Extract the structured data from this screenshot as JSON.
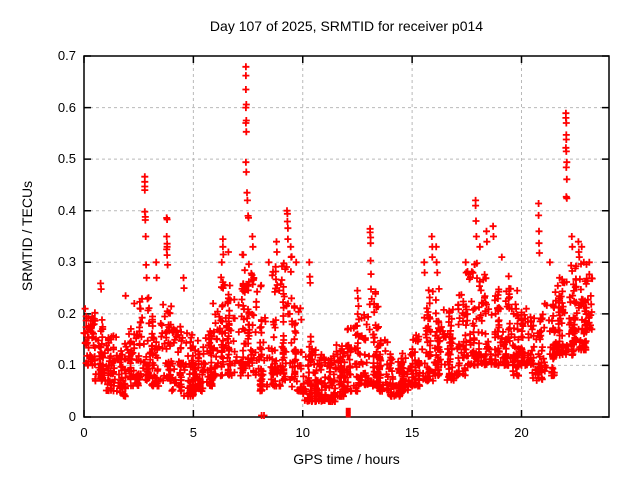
{
  "window": {
    "background": "#ffffff"
  },
  "colors": {
    "points": "#ff0000",
    "grid": "#b9b9b9",
    "axis": "#000000",
    "text": "#000000"
  },
  "chart_data": {
    "type": "scatter",
    "title": "Day 107 of 2025, SRMTID for receiver p014",
    "xlabel": "GPS time / hours",
    "ylabel": "SRMTID / TECUs",
    "xlim": [
      0,
      24
    ],
    "ylim": [
      0,
      0.7
    ],
    "xticks": {
      "values": [
        0,
        5,
        10,
        15,
        20
      ],
      "labels": [
        "0",
        "5",
        "10",
        "15",
        "20"
      ]
    },
    "yticks": {
      "values": [
        0,
        0.1,
        0.2,
        0.3,
        0.4,
        0.5,
        0.6,
        0.7
      ],
      "labels": [
        "0",
        "0.1",
        "0.2",
        "0.3",
        "0.4",
        "0.5",
        "0.6",
        "0.7"
      ]
    },
    "grid": true,
    "legend": null,
    "marker": {
      "shape": "plus",
      "color": "#ff0000",
      "size": 7
    },
    "series_name": "SRMTID",
    "seed": 107,
    "peak_points": [
      [
        0.05,
        0.21
      ],
      [
        0.1,
        0.195
      ],
      [
        0.76,
        0.259
      ],
      [
        0.78,
        0.248
      ],
      [
        1.9,
        0.235
      ],
      [
        2.3,
        0.22
      ],
      [
        2.78,
        0.466
      ],
      [
        2.78,
        0.456
      ],
      [
        2.78,
        0.447
      ],
      [
        2.78,
        0.44
      ],
      [
        2.78,
        0.398
      ],
      [
        2.8,
        0.388
      ],
      [
        2.8,
        0.382
      ],
      [
        2.82,
        0.35
      ],
      [
        2.84,
        0.295
      ],
      [
        2.86,
        0.27
      ],
      [
        3.3,
        0.3
      ],
      [
        3.32,
        0.27
      ],
      [
        3.78,
        0.386
      ],
      [
        3.8,
        0.383
      ],
      [
        3.78,
        0.35
      ],
      [
        3.8,
        0.336
      ],
      [
        3.8,
        0.33
      ],
      [
        3.78,
        0.325
      ],
      [
        3.8,
        0.314
      ],
      [
        3.82,
        0.295
      ],
      [
        4.55,
        0.27
      ],
      [
        4.57,
        0.25
      ],
      [
        5.9,
        0.22
      ],
      [
        6.35,
        0.345
      ],
      [
        6.35,
        0.33
      ],
      [
        6.37,
        0.315
      ],
      [
        6.3,
        0.3
      ],
      [
        6.6,
        0.32
      ],
      [
        7.4,
        0.679
      ],
      [
        7.4,
        0.662
      ],
      [
        7.4,
        0.635
      ],
      [
        7.42,
        0.606
      ],
      [
        7.4,
        0.6
      ],
      [
        7.42,
        0.575
      ],
      [
        7.4,
        0.57
      ],
      [
        7.42,
        0.553
      ],
      [
        7.4,
        0.494
      ],
      [
        7.42,
        0.475
      ],
      [
        7.45,
        0.435
      ],
      [
        7.47,
        0.42
      ],
      [
        7.5,
        0.39
      ],
      [
        7.52,
        0.386
      ],
      [
        7.7,
        0.35
      ],
      [
        7.72,
        0.33
      ],
      [
        8.12,
        0.003
      ],
      [
        8.23,
        0.003
      ],
      [
        8.45,
        0.3
      ],
      [
        8.8,
        0.34
      ],
      [
        8.82,
        0.32
      ],
      [
        9.28,
        0.4
      ],
      [
        9.3,
        0.394
      ],
      [
        9.3,
        0.379
      ],
      [
        9.32,
        0.366
      ],
      [
        9.32,
        0.345
      ],
      [
        9.45,
        0.33
      ],
      [
        9.47,
        0.31
      ],
      [
        9.7,
        0.3
      ],
      [
        10.3,
        0.3
      ],
      [
        10.32,
        0.272
      ],
      [
        10.34,
        0.26
      ],
      [
        12.5,
        0.245
      ],
      [
        12.52,
        0.23
      ],
      [
        12.55,
        0.215
      ],
      [
        13.08,
        0.365
      ],
      [
        13.08,
        0.358
      ],
      [
        13.1,
        0.348
      ],
      [
        13.1,
        0.337
      ],
      [
        13.1,
        0.303
      ],
      [
        13.12,
        0.277
      ],
      [
        13.12,
        0.248
      ],
      [
        13.15,
        0.229
      ],
      [
        15.55,
        0.3
      ],
      [
        15.57,
        0.28
      ],
      [
        15.9,
        0.35
      ],
      [
        15.92,
        0.33
      ],
      [
        15.92,
        0.31
      ],
      [
        16.1,
        0.33
      ],
      [
        16.12,
        0.3
      ],
      [
        16.15,
        0.28
      ],
      [
        17.45,
        0.3
      ],
      [
        17.47,
        0.28
      ],
      [
        17.9,
        0.42
      ],
      [
        17.9,
        0.41
      ],
      [
        17.92,
        0.38
      ],
      [
        17.94,
        0.35
      ],
      [
        18.1,
        0.33
      ],
      [
        18.4,
        0.36
      ],
      [
        18.42,
        0.34
      ],
      [
        18.7,
        0.37
      ],
      [
        18.72,
        0.35
      ],
      [
        19.1,
        0.31
      ],
      [
        20.78,
        0.414
      ],
      [
        20.78,
        0.391
      ],
      [
        20.8,
        0.36
      ],
      [
        20.8,
        0.337
      ],
      [
        20.82,
        0.318
      ],
      [
        21.3,
        0.3
      ],
      [
        22.03,
        0.589
      ],
      [
        22.03,
        0.58
      ],
      [
        22.05,
        0.57
      ],
      [
        22.05,
        0.547
      ],
      [
        22.05,
        0.538
      ],
      [
        22.03,
        0.522
      ],
      [
        22.05,
        0.515
      ],
      [
        22.07,
        0.494
      ],
      [
        22.05,
        0.484
      ],
      [
        22.07,
        0.461
      ],
      [
        22.05,
        0.427
      ],
      [
        22.07,
        0.424
      ],
      [
        22.3,
        0.35
      ],
      [
        22.32,
        0.33
      ],
      [
        22.6,
        0.34
      ],
      [
        22.62,
        0.32
      ],
      [
        22.64,
        0.31
      ],
      [
        22.75,
        0.33
      ],
      [
        22.85,
        0.3
      ],
      [
        23.1,
        0.3
      ]
    ],
    "square_points": [
      [
        12.08,
        0.004
      ],
      [
        12.08,
        0.013
      ]
    ],
    "density_bins": [
      [
        0.0,
        0.5,
        46,
        0.1,
        0.21
      ],
      [
        0.5,
        1.0,
        46,
        0.07,
        0.19
      ],
      [
        1.0,
        1.5,
        46,
        0.05,
        0.16
      ],
      [
        1.5,
        2.0,
        46,
        0.04,
        0.15
      ],
      [
        2.0,
        2.5,
        46,
        0.06,
        0.18
      ],
      [
        2.5,
        3.0,
        46,
        0.07,
        0.24
      ],
      [
        3.0,
        3.5,
        46,
        0.06,
        0.2
      ],
      [
        3.5,
        4.0,
        46,
        0.07,
        0.22
      ],
      [
        4.0,
        4.5,
        46,
        0.05,
        0.18
      ],
      [
        4.5,
        5.0,
        46,
        0.04,
        0.17
      ],
      [
        5.0,
        5.5,
        46,
        0.05,
        0.15
      ],
      [
        5.5,
        6.0,
        46,
        0.06,
        0.17
      ],
      [
        6.0,
        6.5,
        46,
        0.08,
        0.28
      ],
      [
        6.5,
        7.0,
        46,
        0.08,
        0.26
      ],
      [
        7.0,
        7.5,
        46,
        0.08,
        0.32
      ],
      [
        7.5,
        8.0,
        46,
        0.08,
        0.3
      ],
      [
        8.0,
        8.5,
        44,
        0.05,
        0.26
      ],
      [
        8.5,
        9.0,
        46,
        0.06,
        0.3
      ],
      [
        9.0,
        9.5,
        46,
        0.07,
        0.32
      ],
      [
        9.5,
        10.0,
        46,
        0.05,
        0.22
      ],
      [
        10.0,
        10.5,
        46,
        0.03,
        0.16
      ],
      [
        10.5,
        11.0,
        46,
        0.03,
        0.13
      ],
      [
        11.0,
        11.5,
        46,
        0.03,
        0.12
      ],
      [
        11.5,
        12.0,
        46,
        0.04,
        0.14
      ],
      [
        12.0,
        12.5,
        45,
        0.05,
        0.18
      ],
      [
        12.5,
        13.0,
        46,
        0.06,
        0.2
      ],
      [
        13.0,
        13.5,
        46,
        0.06,
        0.25
      ],
      [
        13.5,
        14.0,
        46,
        0.05,
        0.15
      ],
      [
        14.0,
        14.5,
        46,
        0.04,
        0.13
      ],
      [
        14.5,
        15.0,
        46,
        0.05,
        0.14
      ],
      [
        15.0,
        15.5,
        46,
        0.06,
        0.16
      ],
      [
        15.5,
        16.0,
        46,
        0.07,
        0.25
      ],
      [
        16.0,
        16.5,
        46,
        0.08,
        0.28
      ],
      [
        16.5,
        17.0,
        46,
        0.07,
        0.22
      ],
      [
        17.0,
        17.5,
        46,
        0.08,
        0.25
      ],
      [
        17.5,
        18.0,
        46,
        0.1,
        0.3
      ],
      [
        18.0,
        18.5,
        46,
        0.1,
        0.28
      ],
      [
        18.5,
        19.0,
        46,
        0.1,
        0.3
      ],
      [
        19.0,
        19.5,
        46,
        0.1,
        0.28
      ],
      [
        19.5,
        20.0,
        46,
        0.08,
        0.25
      ],
      [
        20.0,
        20.5,
        50,
        0.1,
        0.22
      ],
      [
        20.5,
        21.0,
        44,
        0.07,
        0.2
      ],
      [
        21.0,
        21.5,
        44,
        0.08,
        0.22
      ],
      [
        21.5,
        22.0,
        55,
        0.12,
        0.28
      ],
      [
        22.0,
        22.5,
        55,
        0.12,
        0.3
      ],
      [
        22.5,
        23.0,
        50,
        0.13,
        0.3
      ],
      [
        23.0,
        23.25,
        18,
        0.17,
        0.28
      ]
    ]
  }
}
